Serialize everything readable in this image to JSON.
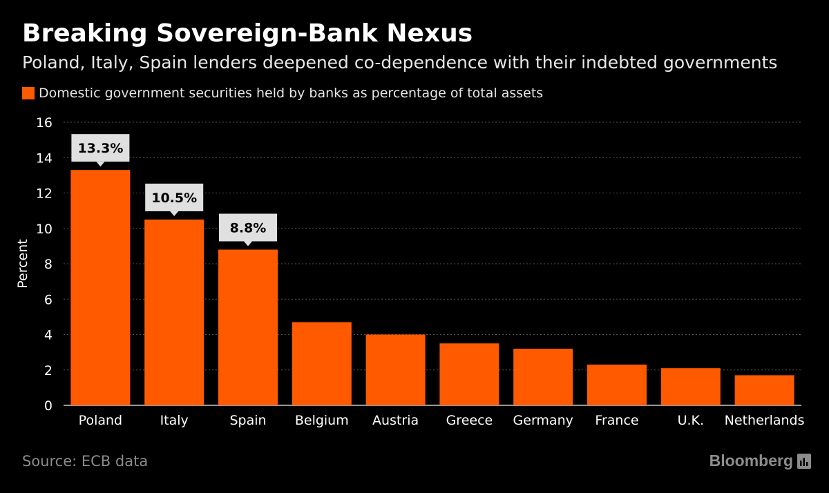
{
  "header": {
    "title": "Breaking Sovereign-Bank Nexus",
    "subtitle": "Poland, Italy, Spain lenders deepened co-dependence with their indebted governments"
  },
  "legend": {
    "label": "Domestic government securities held by banks as percentage of total assets",
    "color": "#ff5a00"
  },
  "footer": {
    "source": "Source: ECB data",
    "brand": "Bloomberg",
    "brand_icon": "bloomberg-chart-icon"
  },
  "colors": {
    "background": "#000000",
    "bar": "#ff5a00",
    "label_box": "#e0e0e0",
    "gridline": "#555555",
    "text": "#ffffff",
    "muted": "#8c8c8c"
  },
  "chart_data": {
    "type": "bar",
    "categories": [
      "Poland",
      "Italy",
      "Spain",
      "Belgium",
      "Austria",
      "Greece",
      "Germany",
      "France",
      "U.K.",
      "Netherlands"
    ],
    "series": [
      {
        "name": "Domestic government securities held by banks as percentage of total assets",
        "values": [
          13.3,
          10.5,
          8.8,
          4.7,
          4.0,
          3.5,
          3.2,
          2.3,
          2.1,
          1.7
        ]
      }
    ],
    "data_labels": [
      "13.3%",
      "10.5%",
      "8.8%",
      null,
      null,
      null,
      null,
      null,
      null,
      null
    ],
    "title": "Breaking Sovereign-Bank Nexus",
    "xlabel": "",
    "ylabel": "Percent",
    "ylim": [
      0,
      16
    ],
    "yticks": [
      0,
      2,
      4,
      6,
      8,
      10,
      12,
      14,
      16
    ],
    "grid": true,
    "legend_position": "top-left"
  }
}
